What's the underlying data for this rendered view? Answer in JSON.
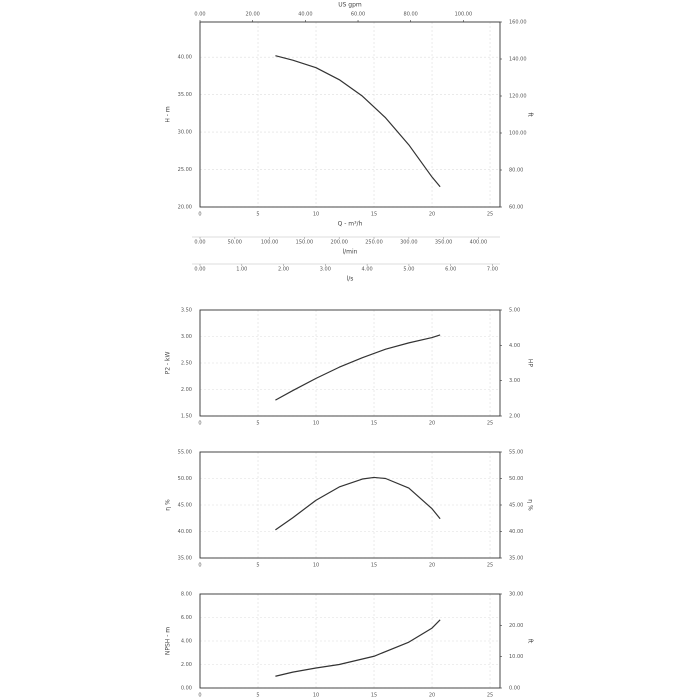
{
  "chart_data": [
    {
      "type": "line",
      "xlabel": "Q - m³/h",
      "ylabel": "H - m",
      "y2label": "ft",
      "xlim": [
        0,
        25.86
      ],
      "xticks": [
        0,
        5,
        10,
        15,
        20,
        25
      ],
      "ylim": [
        20,
        44.7
      ],
      "yticks": [
        {
          "value": 20,
          "label": "20.00"
        },
        {
          "value": 25,
          "label": "25.00"
        },
        {
          "value": 30,
          "label": "30.00"
        },
        {
          "value": 35,
          "label": "35.00"
        },
        {
          "value": 40,
          "label": "40.00"
        }
      ],
      "y2lim": [
        60,
        160
      ],
      "y2ticks": [
        {
          "value": 60,
          "label": "60.00"
        },
        {
          "value": 80,
          "label": "80.00"
        },
        {
          "value": 100,
          "label": "100.00"
        },
        {
          "value": 120,
          "label": "120.00"
        },
        {
          "value": 140,
          "label": "140.00"
        },
        {
          "value": 160,
          "label": "160.00"
        }
      ],
      "top_axis": {
        "label": "US gpm",
        "lim": [
          0,
          113.9
        ],
        "ticks": [
          {
            "value": 0,
            "label": "0.00"
          },
          {
            "value": 20,
            "label": "20.00"
          },
          {
            "value": 40,
            "label": "40.00"
          },
          {
            "value": 60,
            "label": "60.00"
          },
          {
            "value": 80,
            "label": "80.00"
          },
          {
            "value": 100,
            "label": "100.00"
          }
        ]
      },
      "extra_axes": [
        {
          "label": "l/min",
          "lim": [
            0,
            431
          ],
          "ticks": [
            {
              "value": 0,
              "label": "0.00"
            },
            {
              "value": 50,
              "label": "50.00"
            },
            {
              "value": 100,
              "label": "100.00"
            },
            {
              "value": 150,
              "label": "150.00"
            },
            {
              "value": 200,
              "label": "200.00"
            },
            {
              "value": 250,
              "label": "250.00"
            },
            {
              "value": 300,
              "label": "300.00"
            },
            {
              "value": 350,
              "label": "350.00"
            },
            {
              "value": 400,
              "label": "400.00"
            }
          ]
        },
        {
          "label": "l/s",
          "lim": [
            0,
            7.18
          ],
          "ticks": [
            {
              "value": 0,
              "label": "0.00"
            },
            {
              "value": 1,
              "label": "1.00"
            },
            {
              "value": 2,
              "label": "2.00"
            },
            {
              "value": 3,
              "label": "3.00"
            },
            {
              "value": 4,
              "label": "4.00"
            },
            {
              "value": 5,
              "label": "5.00"
            },
            {
              "value": 6,
              "label": "6.00"
            },
            {
              "value": 7,
              "label": "7.00"
            }
          ]
        }
      ],
      "series": [
        {
          "color": "#333333",
          "x": [
            6.5,
            8,
            10,
            12,
            14,
            16,
            18,
            20,
            20.7
          ],
          "values": [
            40.2,
            39.6,
            38.6,
            37.0,
            34.8,
            31.9,
            28.3,
            24.0,
            22.7
          ]
        }
      ]
    },
    {
      "type": "line",
      "ylabel": "P2 - kW",
      "y2label": "HP",
      "xlim": [
        0,
        25.86
      ],
      "xticks": [
        0,
        5,
        10,
        15,
        20,
        25
      ],
      "ylim": [
        1.5,
        3.5
      ],
      "yticks": [
        {
          "value": 1.5,
          "label": "1.50"
        },
        {
          "value": 2,
          "label": "2.00"
        },
        {
          "value": 2.5,
          "label": "2.50"
        },
        {
          "value": 3,
          "label": "3.00"
        },
        {
          "value": 3.5,
          "label": "3.50"
        }
      ],
      "y2lim": [
        2,
        5
      ],
      "y2ticks": [
        {
          "value": 2,
          "label": "2.00"
        },
        {
          "value": 3,
          "label": "3.00"
        },
        {
          "value": 4,
          "label": "4.00"
        },
        {
          "value": 5,
          "label": "5.00"
        }
      ],
      "series": [
        {
          "color": "#333333",
          "x": [
            6.5,
            8,
            10,
            12,
            14,
            16,
            18,
            20,
            20.7
          ],
          "values": [
            1.8,
            1.98,
            2.21,
            2.42,
            2.6,
            2.76,
            2.88,
            2.98,
            3.03
          ]
        }
      ]
    },
    {
      "type": "line",
      "ylabel": "η %",
      "y2label": "η %",
      "xlim": [
        0,
        25.86
      ],
      "xticks": [
        0,
        5,
        10,
        15,
        20,
        25
      ],
      "ylim": [
        35,
        55
      ],
      "yticks": [
        {
          "value": 35,
          "label": "35.00"
        },
        {
          "value": 40,
          "label": "40.00"
        },
        {
          "value": 45,
          "label": "45.00"
        },
        {
          "value": 50,
          "label": "50.00"
        },
        {
          "value": 55,
          "label": "55.00"
        }
      ],
      "y2lim": [
        35,
        55
      ],
      "y2ticks": [
        {
          "value": 35,
          "label": "35.00"
        },
        {
          "value": 40,
          "label": "40.00"
        },
        {
          "value": 45,
          "label": "45.00"
        },
        {
          "value": 50,
          "label": "50.00"
        },
        {
          "value": 55,
          "label": "55.00"
        }
      ],
      "series": [
        {
          "color": "#333333",
          "x": [
            6.5,
            8,
            10,
            12,
            14,
            15,
            16,
            18,
            20,
            20.7
          ],
          "values": [
            40.3,
            42.6,
            45.9,
            48.4,
            49.9,
            50.2,
            50.0,
            48.2,
            44.3,
            42.4
          ]
        }
      ]
    },
    {
      "type": "line",
      "ylabel": "NPSH - m",
      "y2label": "ft",
      "xlim": [
        0,
        25.86
      ],
      "xticks": [
        0,
        5,
        10,
        15,
        20,
        25
      ],
      "ylim": [
        0,
        8
      ],
      "yticks": [
        {
          "value": 0,
          "label": "0.00"
        },
        {
          "value": 2,
          "label": "2.00"
        },
        {
          "value": 4,
          "label": "4.00"
        },
        {
          "value": 6,
          "label": "6.00"
        },
        {
          "value": 8,
          "label": "8.00"
        }
      ],
      "y2lim": [
        0,
        30
      ],
      "y2ticks": [
        {
          "value": 0,
          "label": "0.00"
        },
        {
          "value": 10,
          "label": "10.00"
        },
        {
          "value": 20,
          "label": "20.00"
        },
        {
          "value": 30,
          "label": "30.00"
        }
      ],
      "series": [
        {
          "color": "#333333",
          "x": [
            6.5,
            8,
            10,
            12,
            15,
            18,
            20,
            20.7
          ],
          "values": [
            1.0,
            1.35,
            1.7,
            2.0,
            2.7,
            3.9,
            5.1,
            5.8
          ]
        }
      ]
    }
  ]
}
